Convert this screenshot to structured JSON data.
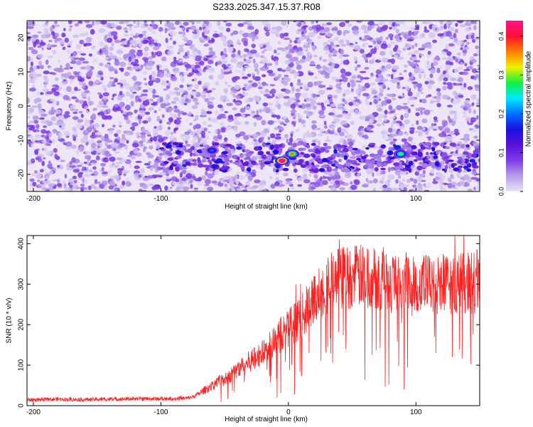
{
  "title": "S233.2025.347.15.37.R08",
  "chart_data": [
    {
      "type": "heatmap",
      "xlabel": "Height of straight line (km)",
      "ylabel": "Frequency (Hz)",
      "xlim": [
        -205,
        150
      ],
      "ylim": [
        -25,
        25
      ],
      "xticks": [
        -200,
        -100,
        0,
        100
      ],
      "yticks": [
        -20,
        -10,
        0,
        10,
        20
      ],
      "colorbar": {
        "label": "Normalized spectral amplitude",
        "range": [
          0.0,
          0.44
        ],
        "ticks": [
          0.0,
          0.1,
          0.2,
          0.3,
          0.4
        ],
        "colors": [
          "#e8e4f4",
          "#b79be8",
          "#7d3ce6",
          "#5a10d8",
          "#1a10e0",
          "#0070ff",
          "#00e8ff",
          "#10f040",
          "#f0f000",
          "#ff8000",
          "#ff1030",
          "#ff1090"
        ]
      },
      "features": {
        "band_center_hz": -15,
        "band_x_range_km": [
          -100,
          150
        ],
        "peaks": [
          {
            "x": -5,
            "y": -16,
            "amplitude": 0.44
          },
          {
            "x": 3,
            "y": -14,
            "amplitude": 0.28
          },
          {
            "x": 88,
            "y": -14,
            "amplitude": 0.22
          },
          {
            "x": -60,
            "y": -13,
            "amplitude": 0.15
          }
        ]
      }
    },
    {
      "type": "line",
      "xlabel": "Height of straight line (km)",
      "ylabel": "SNR (10 * v/v)",
      "xlim": [
        -205,
        150
      ],
      "ylim": [
        0,
        420
      ],
      "xticks": [
        -200,
        -100,
        0,
        100
      ],
      "yticks": [
        0,
        100,
        200,
        300,
        400
      ],
      "line_color": "#ff2020",
      "x": [
        -205,
        -180,
        -160,
        -140,
        -120,
        -100,
        -80,
        -75,
        -70,
        -65,
        -60,
        -55,
        -50,
        -45,
        -40,
        -35,
        -30,
        -25,
        -20,
        -15,
        -10,
        -5,
        0,
        5,
        10,
        15,
        20,
        25,
        30,
        35,
        40,
        45,
        50,
        55,
        60,
        70,
        80,
        90,
        100,
        110,
        120,
        130,
        140,
        150
      ],
      "y": [
        14,
        16,
        15,
        16,
        17,
        17,
        18,
        22,
        30,
        40,
        48,
        60,
        65,
        75,
        90,
        100,
        110,
        120,
        130,
        145,
        160,
        180,
        195,
        205,
        220,
        240,
        260,
        285,
        300,
        310,
        315,
        318,
        318,
        320,
        318,
        315,
        312,
        310,
        305,
        300,
        300,
        300,
        305,
        310
      ]
    }
  ]
}
